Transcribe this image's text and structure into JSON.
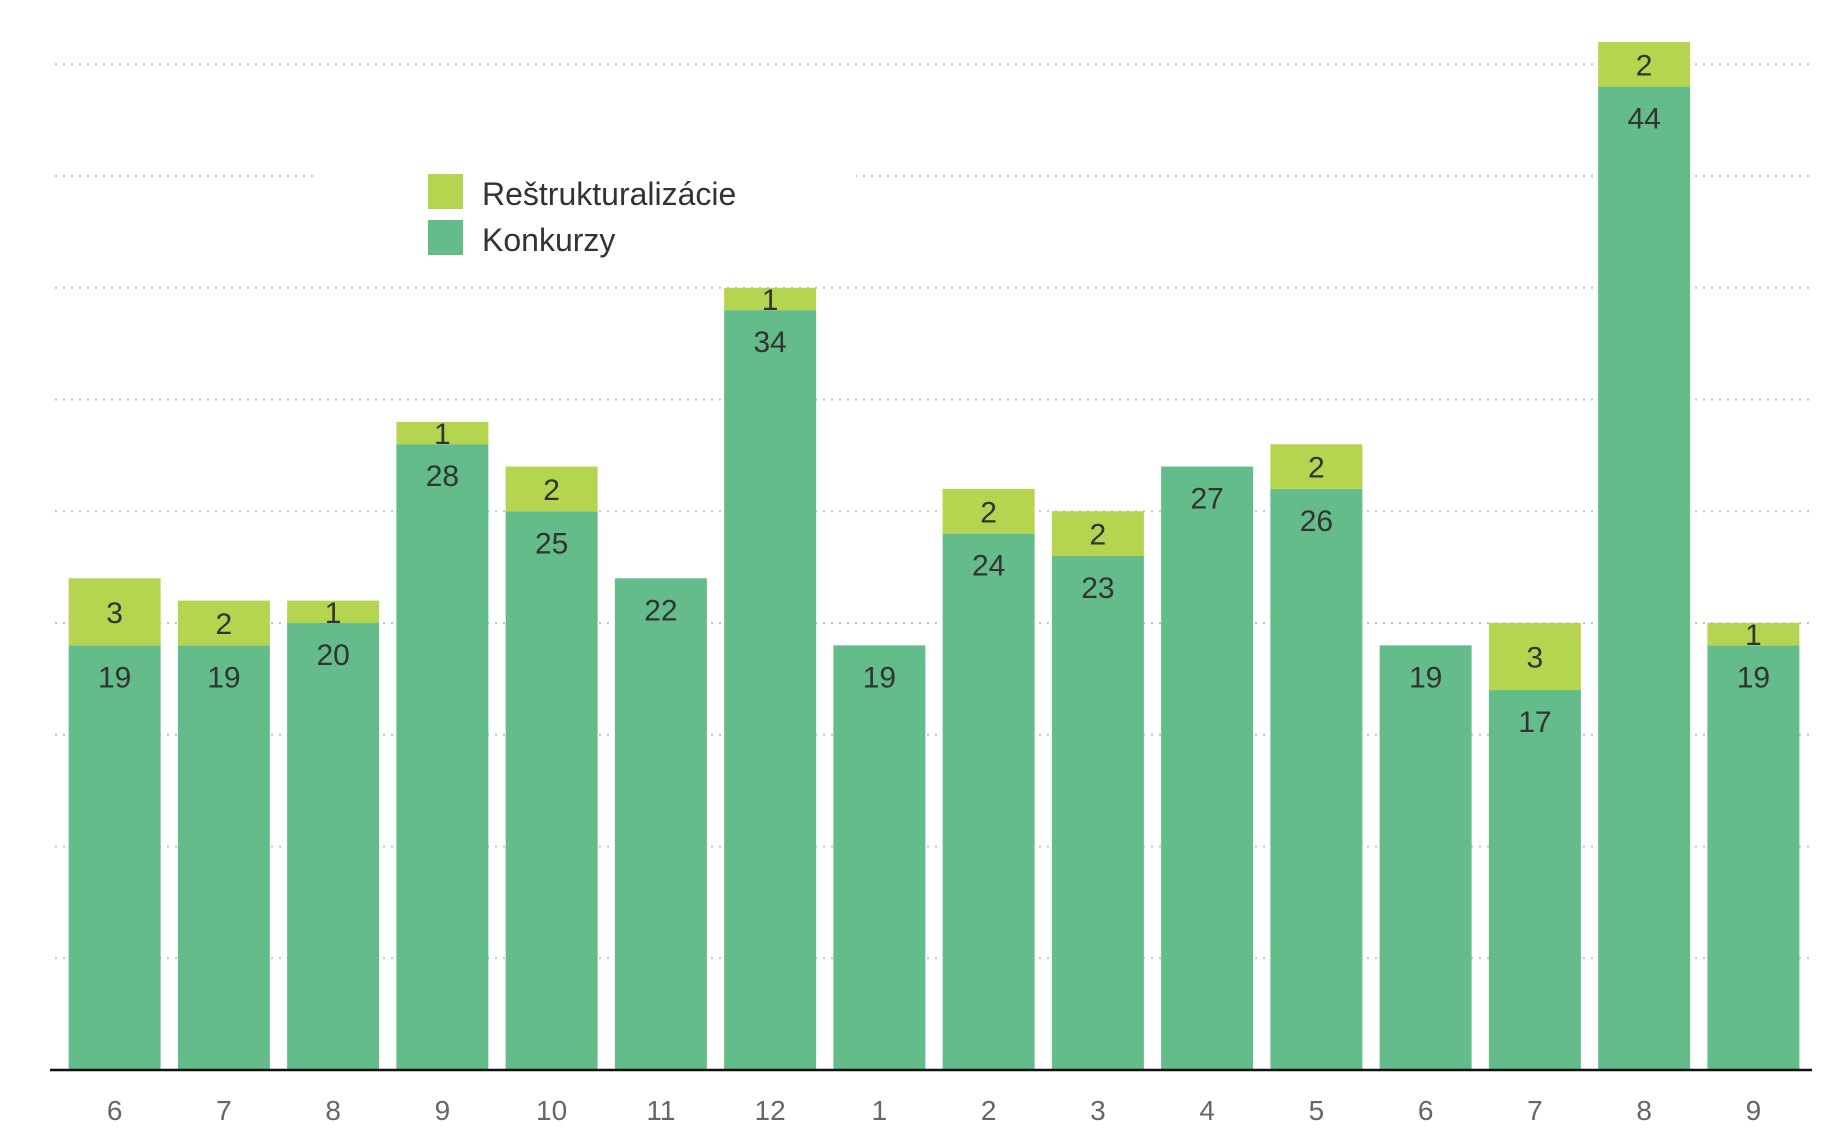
{
  "chart_data": {
    "type": "bar",
    "stacked": true,
    "categories": [
      "6",
      "7",
      "8",
      "9",
      "10",
      "11",
      "12",
      "1",
      "2",
      "3",
      "4",
      "5",
      "6",
      "7",
      "8",
      "9"
    ],
    "series": [
      {
        "name": "Konkurzy",
        "values": [
          19,
          19,
          20,
          28,
          25,
          22,
          34,
          19,
          24,
          23,
          27,
          26,
          19,
          17,
          44,
          19
        ]
      },
      {
        "name": "Reštrukturalizácie",
        "values": [
          3,
          2,
          1,
          1,
          2,
          0,
          1,
          0,
          2,
          2,
          0,
          2,
          0,
          3,
          2,
          1
        ]
      }
    ],
    "title": "",
    "xlabel": "",
    "ylabel": "",
    "ylim": [
      0,
      48
    ],
    "grid": true,
    "legend_position": "top-left"
  },
  "colors": {
    "Konkurzy": "#63bc89",
    "Reštrukturalizácie": "#b5d44f"
  }
}
